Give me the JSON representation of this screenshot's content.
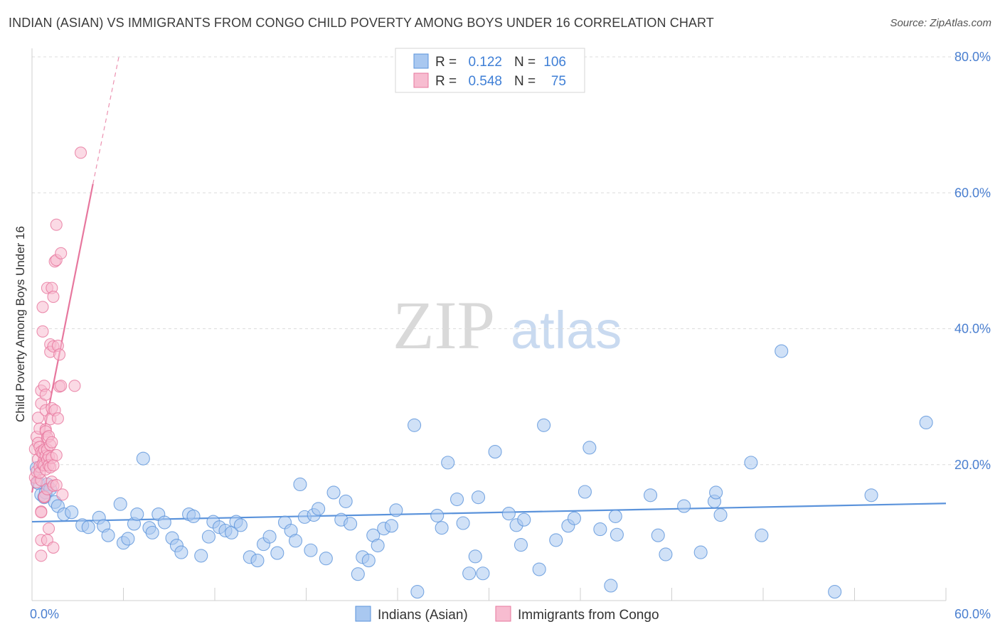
{
  "title": "INDIAN (ASIAN) VS IMMIGRANTS FROM CONGO CHILD POVERTY AMONG BOYS UNDER 16 CORRELATION CHART",
  "source": "Source: ZipAtlas.com",
  "watermark": {
    "zip": "ZIP",
    "atlas": "atlas"
  },
  "legend_top": {
    "r_label": "R =",
    "n_label": "N =",
    "rows": [
      {
        "r": "0.122",
        "n": "106",
        "color": "#a9c8f0",
        "stroke": "#5b93db"
      },
      {
        "r": "0.548",
        "n": "75",
        "color": "#f7bcd0",
        "stroke": "#e7779e"
      }
    ]
  },
  "legend_bottom": [
    {
      "label": "Indians (Asian)",
      "color": "#a9c8f0",
      "stroke": "#5b93db"
    },
    {
      "label": "Immigrants from Congo",
      "color": "#f7bcd0",
      "stroke": "#e7779e"
    }
  ],
  "chart_data": {
    "type": "scatter",
    "title": "INDIAN (ASIAN) VS IMMIGRANTS FROM CONGO CHILD POVERTY AMONG BOYS UNDER 16 CORRELATION CHART",
    "xlabel": "",
    "ylabel": "Child Poverty Among Boys Under 16",
    "xlim": [
      0,
      60
    ],
    "ylim": [
      0,
      80
    ],
    "x_tick_labels": [
      {
        "value": 0,
        "label": "0.0%"
      },
      {
        "value": 60,
        "label": "60.0%"
      }
    ],
    "y_tick_labels": [
      {
        "value": 20,
        "label": "20.0%"
      },
      {
        "value": 40,
        "label": "40.0%"
      },
      {
        "value": 60,
        "label": "60.0%"
      },
      {
        "value": 80,
        "label": "80.0%"
      }
    ],
    "grid": true,
    "series": [
      {
        "name": "Indians (Asian)",
        "color": "#5b93db",
        "fill": "#a9c8f0",
        "trend": {
          "x": [
            0,
            60
          ],
          "y": [
            11.6,
            14.3
          ],
          "dashed_extension": false
        },
        "points": [
          [
            0.3,
            19.5
          ],
          [
            0.4,
            17.3
          ],
          [
            0.6,
            15.6
          ],
          [
            0.8,
            15.2
          ],
          [
            0.9,
            15.9
          ],
          [
            1.0,
            17.1
          ],
          [
            1.2,
            16.4
          ],
          [
            1.5,
            14.5
          ],
          [
            1.7,
            13.9
          ],
          [
            2.1,
            12.7
          ],
          [
            2.6,
            13.0
          ],
          [
            3.3,
            11.1
          ],
          [
            3.7,
            10.8
          ],
          [
            4.4,
            12.2
          ],
          [
            4.7,
            11.0
          ],
          [
            5.0,
            9.6
          ],
          [
            5.8,
            14.2
          ],
          [
            6.0,
            8.5
          ],
          [
            6.3,
            9.1
          ],
          [
            6.7,
            11.3
          ],
          [
            6.9,
            12.7
          ],
          [
            7.3,
            20.9
          ],
          [
            7.7,
            10.7
          ],
          [
            7.9,
            10.0
          ],
          [
            8.3,
            12.7
          ],
          [
            8.7,
            11.5
          ],
          [
            9.2,
            9.2
          ],
          [
            9.5,
            8.1
          ],
          [
            9.8,
            7.1
          ],
          [
            10.3,
            12.7
          ],
          [
            10.6,
            12.4
          ],
          [
            11.1,
            6.6
          ],
          [
            11.6,
            9.4
          ],
          [
            11.9,
            11.6
          ],
          [
            12.3,
            10.8
          ],
          [
            12.7,
            10.3
          ],
          [
            13.1,
            10.0
          ],
          [
            13.4,
            11.6
          ],
          [
            13.7,
            11.1
          ],
          [
            14.3,
            6.4
          ],
          [
            14.8,
            5.9
          ],
          [
            15.2,
            8.3
          ],
          [
            15.6,
            9.4
          ],
          [
            16.1,
            7.0
          ],
          [
            16.6,
            11.5
          ],
          [
            17.0,
            10.3
          ],
          [
            17.3,
            8.8
          ],
          [
            17.6,
            17.1
          ],
          [
            17.9,
            12.3
          ],
          [
            18.3,
            7.4
          ],
          [
            18.5,
            12.6
          ],
          [
            18.8,
            13.5
          ],
          [
            19.3,
            6.2
          ],
          [
            19.8,
            15.9
          ],
          [
            20.3,
            11.9
          ],
          [
            20.6,
            14.6
          ],
          [
            20.9,
            11.3
          ],
          [
            21.4,
            3.9
          ],
          [
            21.7,
            6.4
          ],
          [
            22.1,
            5.9
          ],
          [
            22.4,
            9.6
          ],
          [
            22.7,
            8.1
          ],
          [
            23.1,
            10.6
          ],
          [
            23.6,
            11.0
          ],
          [
            23.9,
            13.3
          ],
          [
            25.1,
            25.8
          ],
          [
            25.3,
            1.3
          ],
          [
            26.6,
            12.5
          ],
          [
            26.9,
            10.7
          ],
          [
            27.3,
            20.3
          ],
          [
            27.9,
            14.9
          ],
          [
            28.3,
            11.4
          ],
          [
            28.7,
            4.0
          ],
          [
            29.1,
            6.5
          ],
          [
            29.3,
            15.2
          ],
          [
            29.6,
            4.0
          ],
          [
            30.4,
            21.9
          ],
          [
            31.3,
            12.8
          ],
          [
            31.8,
            11.1
          ],
          [
            32.1,
            8.2
          ],
          [
            32.3,
            11.9
          ],
          [
            33.3,
            4.6
          ],
          [
            33.6,
            25.8
          ],
          [
            34.4,
            8.9
          ],
          [
            35.2,
            11.0
          ],
          [
            35.6,
            12.1
          ],
          [
            36.6,
            22.5
          ],
          [
            36.3,
            16.0
          ],
          [
            37.3,
            10.5
          ],
          [
            38.0,
            2.2
          ],
          [
            38.4,
            9.7
          ],
          [
            38.3,
            12.4
          ],
          [
            40.6,
            15.5
          ],
          [
            41.1,
            9.6
          ],
          [
            41.6,
            6.8
          ],
          [
            42.8,
            13.9
          ],
          [
            43.9,
            7.1
          ],
          [
            44.8,
            14.6
          ],
          [
            44.9,
            15.9
          ],
          [
            45.2,
            12.6
          ],
          [
            47.2,
            20.3
          ],
          [
            47.9,
            9.6
          ],
          [
            49.2,
            36.7
          ],
          [
            52.7,
            1.3
          ],
          [
            55.1,
            15.5
          ],
          [
            58.7,
            26.2
          ]
        ]
      },
      {
        "name": "Immigrants from Congo",
        "color": "#e7779e",
        "fill": "#f7bcd0",
        "trend": {
          "x": [
            0,
            4.0
          ],
          "y": [
            15.9,
            61.3
          ],
          "dashed_extension": true,
          "dashed_to": {
            "x": 5.7,
            "y": 80.0
          }
        },
        "points": [
          [
            0.2,
            22.3
          ],
          [
            0.2,
            18.1
          ],
          [
            0.3,
            24.1
          ],
          [
            0.3,
            19.0
          ],
          [
            0.3,
            17.4
          ],
          [
            0.4,
            20.8
          ],
          [
            0.4,
            26.9
          ],
          [
            0.4,
            23.2
          ],
          [
            0.5,
            22.6
          ],
          [
            0.5,
            19.7
          ],
          [
            0.5,
            25.3
          ],
          [
            0.6,
            29.0
          ],
          [
            0.6,
            30.9
          ],
          [
            0.6,
            17.7
          ],
          [
            0.6,
            21.9
          ],
          [
            0.5,
            18.8
          ],
          [
            0.6,
            13.1
          ],
          [
            0.6,
            13.0
          ],
          [
            0.6,
            8.9
          ],
          [
            0.6,
            6.6
          ],
          [
            0.7,
            43.2
          ],
          [
            0.7,
            39.6
          ],
          [
            0.7,
            21.7
          ],
          [
            0.7,
            20.0
          ],
          [
            0.8,
            22.2
          ],
          [
            0.8,
            19.9
          ],
          [
            0.8,
            15.2
          ],
          [
            0.8,
            15.3
          ],
          [
            0.8,
            31.6
          ],
          [
            0.9,
            30.3
          ],
          [
            0.9,
            28.0
          ],
          [
            0.9,
            25.2
          ],
          [
            0.9,
            24.9
          ],
          [
            0.9,
            21.3
          ],
          [
            0.9,
            19.3
          ],
          [
            1.0,
            46.0
          ],
          [
            1.0,
            24.0
          ],
          [
            1.0,
            22.2
          ],
          [
            1.0,
            20.7
          ],
          [
            1.0,
            16.4
          ],
          [
            1.0,
            8.9
          ],
          [
            1.1,
            24.2
          ],
          [
            1.1,
            21.2
          ],
          [
            1.1,
            19.9
          ],
          [
            1.1,
            10.6
          ],
          [
            1.2,
            37.7
          ],
          [
            1.2,
            36.6
          ],
          [
            1.2,
            26.7
          ],
          [
            1.2,
            22.9
          ],
          [
            1.2,
            19.6
          ],
          [
            1.3,
            46.0
          ],
          [
            1.3,
            28.3
          ],
          [
            1.3,
            23.3
          ],
          [
            1.3,
            21.0
          ],
          [
            1.3,
            17.5
          ],
          [
            1.4,
            44.7
          ],
          [
            1.4,
            37.4
          ],
          [
            1.4,
            19.9
          ],
          [
            1.4,
            16.9
          ],
          [
            1.4,
            7.8
          ],
          [
            1.5,
            49.9
          ],
          [
            1.5,
            28.0
          ],
          [
            1.6,
            55.3
          ],
          [
            1.6,
            50.1
          ],
          [
            1.6,
            21.4
          ],
          [
            1.6,
            17.0
          ],
          [
            1.7,
            37.5
          ],
          [
            1.7,
            26.8
          ],
          [
            1.8,
            36.2
          ],
          [
            1.8,
            31.5
          ],
          [
            1.9,
            51.1
          ],
          [
            1.9,
            31.6
          ],
          [
            2.0,
            15.6
          ],
          [
            2.8,
            31.6
          ],
          [
            3.2,
            65.9
          ]
        ]
      }
    ]
  }
}
